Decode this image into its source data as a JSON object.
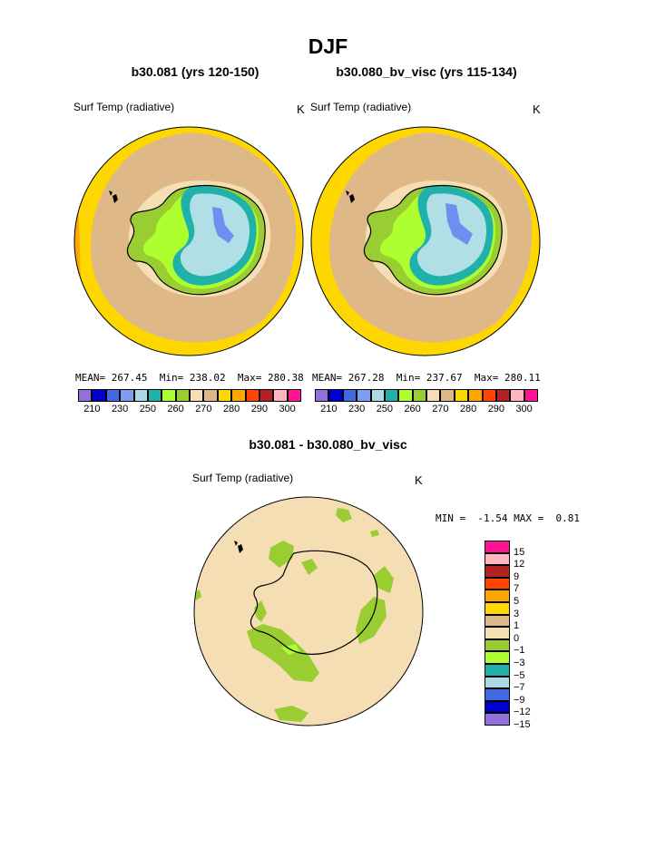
{
  "page": {
    "title": "DJF",
    "diff_title": "b30.081 - b30.080_bv_visc"
  },
  "chart_data": [
    {
      "type": "heatmap",
      "projection": "south-polar-stereographic",
      "title": "b30.081 (yrs 120-150)",
      "variable": "Surf Temp (radiative)",
      "units": "K",
      "stats": {
        "mean_label": "MEAN=",
        "mean": "267.45",
        "min_label": "Min=",
        "min": "238.02",
        "max_label": "Max=",
        "max": "280.38"
      },
      "colorbar": {
        "colors": [
          "#9370db",
          "#0000cd",
          "#4169e1",
          "#7b9ff0",
          "#add8e6",
          "#20b2aa",
          "#adff2f",
          "#9acd32",
          "#f5deb3",
          "#deb887",
          "#ffd700",
          "#ffa500",
          "#ff4500",
          "#b22222",
          "#ffb6c1",
          "#ff1493"
        ],
        "tick_labels": [
          "210",
          "230",
          "250",
          "260",
          "270",
          "280",
          "290",
          "300"
        ]
      }
    },
    {
      "type": "heatmap",
      "projection": "south-polar-stereographic",
      "title": "b30.080_bv_visc (yrs 115-134)",
      "variable": "Surf Temp (radiative)",
      "units": "K",
      "stats": {
        "mean_label": "MEAN=",
        "mean": "267.28",
        "min_label": "Min=",
        "min": "237.67",
        "max_label": "Max=",
        "max": "280.11"
      },
      "colorbar": {
        "colors": [
          "#9370db",
          "#0000cd",
          "#4169e1",
          "#7b9ff0",
          "#add8e6",
          "#20b2aa",
          "#adff2f",
          "#9acd32",
          "#f5deb3",
          "#deb887",
          "#ffd700",
          "#ffa500",
          "#ff4500",
          "#b22222",
          "#ffb6c1",
          "#ff1493"
        ],
        "tick_labels": [
          "210",
          "230",
          "250",
          "260",
          "270",
          "280",
          "290",
          "300"
        ]
      }
    },
    {
      "type": "heatmap",
      "projection": "south-polar-stereographic",
      "title": "b30.081 - b30.080_bv_visc",
      "variable": "Surf Temp (radiative)",
      "units": "K",
      "stats": {
        "min_label": "MIN =",
        "min": "-1.54",
        "max_label": "MAX =",
        "max": "0.81"
      },
      "colorbar": {
        "orientation": "vertical",
        "colors_top_to_bottom": [
          "#ff1493",
          "#ffb6c1",
          "#b22222",
          "#ff4500",
          "#ffa500",
          "#ffd700",
          "#deb887",
          "#f5deb3",
          "#9acd32",
          "#adff2f",
          "#20b2aa",
          "#add8e6",
          "#4169e1",
          "#0000cd",
          "#9370db"
        ],
        "tick_labels_top_to_bottom": [
          "15",
          "12",
          "9",
          "7",
          "5",
          "3",
          "1",
          "0",
          "−1",
          "−3",
          "−5",
          "−7",
          "−9",
          "−12",
          "−15"
        ]
      }
    }
  ],
  "colors": {
    "ocean_warm": "#ffd700",
    "ocean_mid": "#deb887",
    "coast_band": "#9acd32",
    "inland_light": "#adff2f",
    "ring": "#20b2aa",
    "plateau": "#b0e0e6",
    "core": "#6f8ff0",
    "diff_background": "#f5deb3",
    "diff_negative": "#9acd32",
    "diff_light": "#adff2f"
  }
}
